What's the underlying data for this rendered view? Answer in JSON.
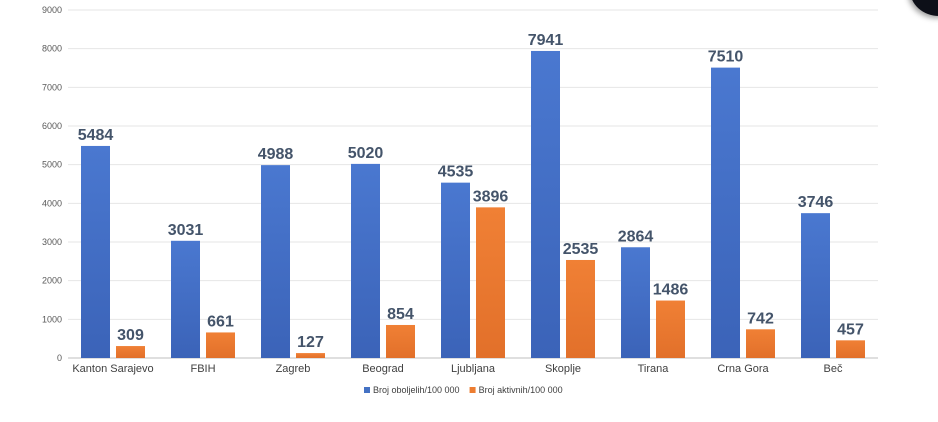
{
  "chart_data": {
    "type": "bar",
    "categories": [
      "Kanton Sarajevo",
      "FBIH",
      "Zagreb",
      "Beograd",
      "Ljubljana",
      "Skoplje",
      "Tirana",
      "Crna Gora",
      "Beč"
    ],
    "series": [
      {
        "name": "Broj oboljelih/100 000",
        "values": [
          5484,
          3031,
          4988,
          5020,
          4535,
          7941,
          2864,
          7510,
          3746
        ],
        "color": "#4472c4"
      },
      {
        "name": "Broj aktivnih/100 000",
        "values": [
          309,
          661,
          127,
          854,
          3896,
          2535,
          1486,
          742,
          457
        ],
        "color": "#ed7d31"
      }
    ],
    "y_ticks": [
      "0",
      "1000",
      "2000",
      "3000",
      "4000",
      "5000",
      "6000",
      "7000",
      "8000",
      "9000"
    ],
    "ylim": [
      0,
      9000
    ],
    "grid": true,
    "legend_position": "bottom",
    "data_labels": true
  }
}
